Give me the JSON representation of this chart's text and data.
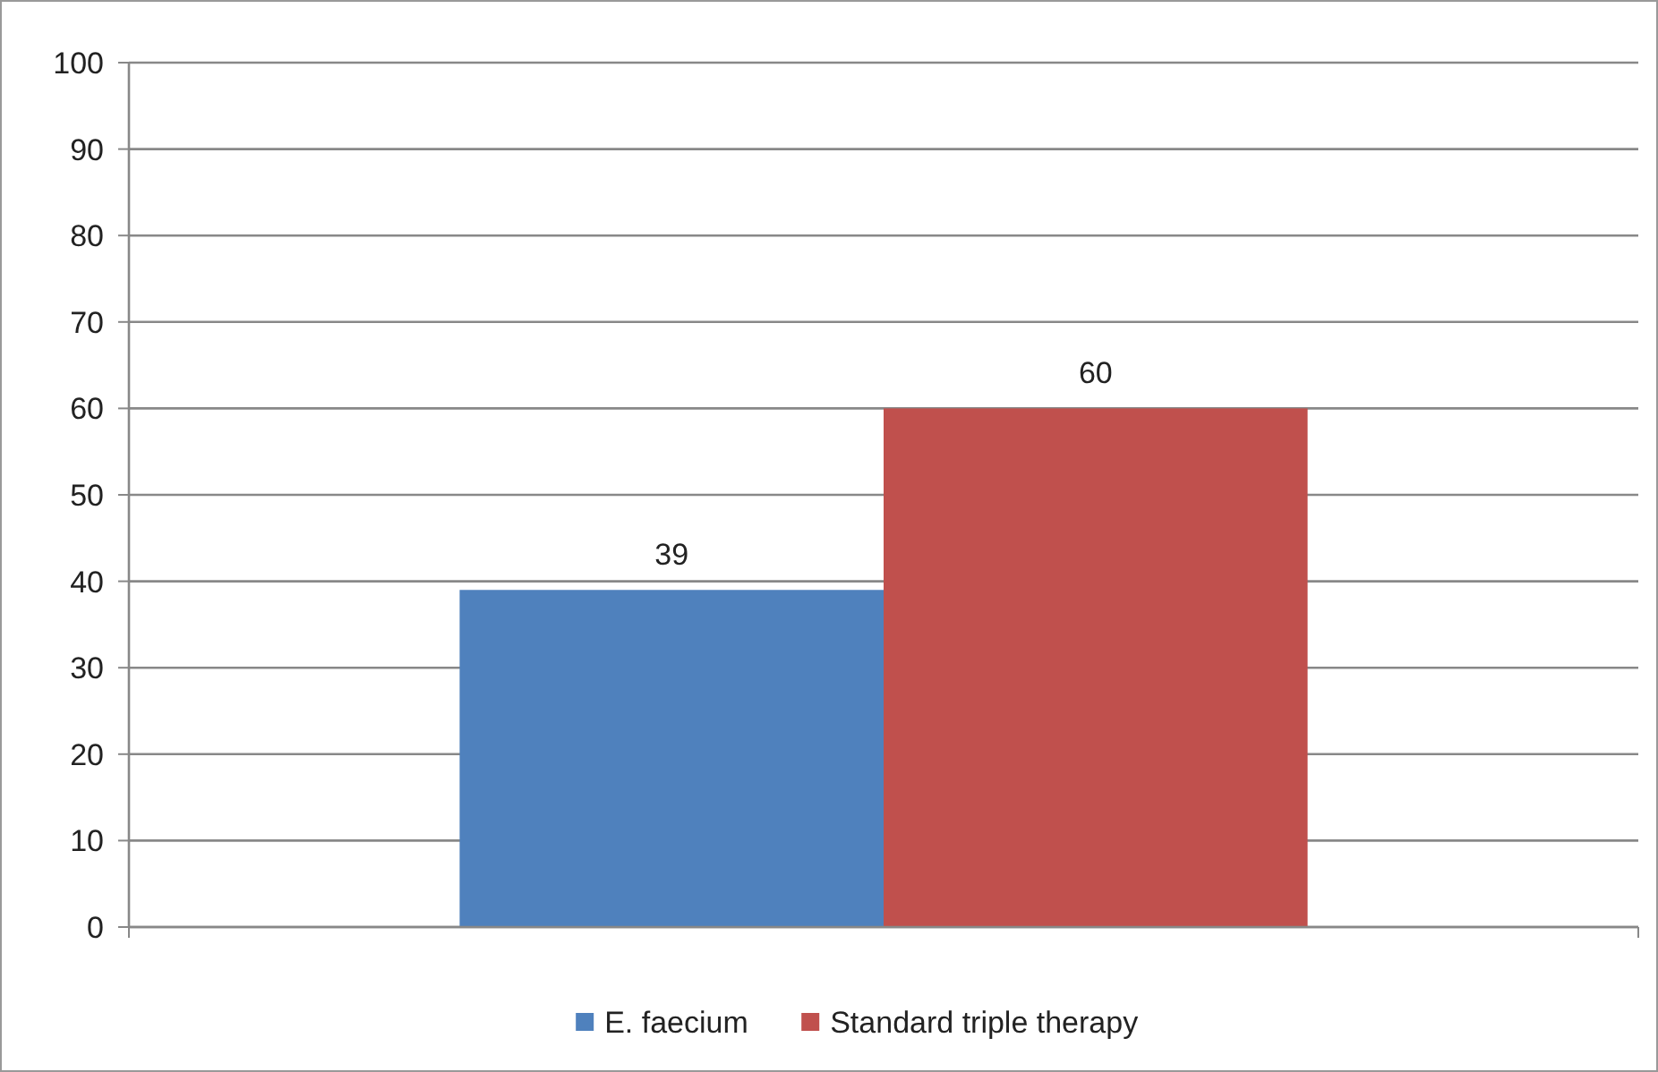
{
  "chart_data": {
    "type": "bar",
    "categories": [
      null
    ],
    "series": [
      {
        "name": "E. faecium",
        "color": "#4f81bd",
        "values": [
          39
        ]
      },
      {
        "name": "Standard triple therapy",
        "color": "#c0504d",
        "values": [
          60
        ]
      }
    ],
    "ylim": [
      0,
      100
    ],
    "yticks": [
      0,
      10,
      20,
      30,
      40,
      50,
      60,
      70,
      80,
      90,
      100
    ],
    "grid": "y",
    "legend": "bottom",
    "data_labels": true
  }
}
